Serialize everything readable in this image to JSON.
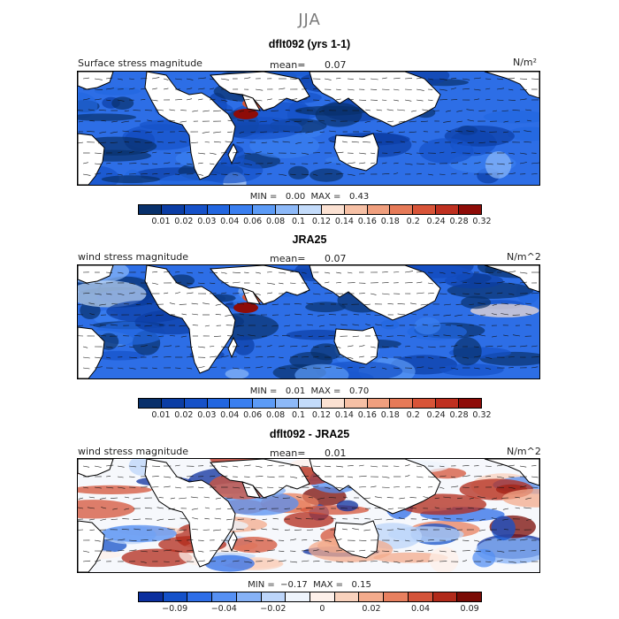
{
  "season": "JJA",
  "palette_abs": [
    "#08306b",
    "#0b3da4",
    "#1651c8",
    "#2266e0",
    "#3a7ff0",
    "#5c9bf6",
    "#8db9f8",
    "#c3dbfa",
    "#fbe1d2",
    "#f6c0a5",
    "#f09f7e",
    "#e67a58",
    "#d85438",
    "#bf3020",
    "#8e0c08"
  ],
  "palette_diff": [
    "#0b2f9e",
    "#1451c9",
    "#2e6ee8",
    "#5690f3",
    "#86b2f7",
    "#bcd5fa",
    "#eef4fc",
    "#fdf0ea",
    "#f9d2bd",
    "#f3ab8c",
    "#e8805f",
    "#d4543a",
    "#b12a1a",
    "#7a0b05"
  ],
  "panels": [
    {
      "title": "dflt092 (yrs 1-1)",
      "field": "Surface stress magnitude",
      "mean_label": "mean=",
      "mean_value": "0.07",
      "units": "N/m²",
      "stats": "MIN =   0.00  MAX =   0.43",
      "ticks": [
        "0.01",
        "0.02",
        "0.03",
        "0.04",
        "0.06",
        "0.08",
        "0.1",
        "0.12",
        "0.14",
        "0.16",
        "0.18",
        "0.2",
        "0.24",
        "0.28",
        "0.32"
      ]
    },
    {
      "title": "JRA25",
      "field": "wind stress magnitude",
      "mean_label": "mean=",
      "mean_value": "0.07",
      "units": "N/m^2",
      "stats": "MIN =   0.01  MAX =   0.70",
      "ticks": [
        "0.01",
        "0.02",
        "0.03",
        "0.04",
        "0.06",
        "0.08",
        "0.1",
        "0.12",
        "0.14",
        "0.16",
        "0.18",
        "0.2",
        "0.24",
        "0.28",
        "0.32"
      ]
    },
    {
      "title": "dflt092 - JRA25",
      "field": "wind stress magnitude",
      "mean_label": "mean=",
      "mean_value": "0.01",
      "units": "N/m^2",
      "stats": "MIN =  −0.17  MAX =   0.15",
      "ticks": [
        "−0.09",
        "−0.04",
        "−0.02",
        "0",
        "0.02",
        "0.04",
        "0.09"
      ]
    }
  ]
}
